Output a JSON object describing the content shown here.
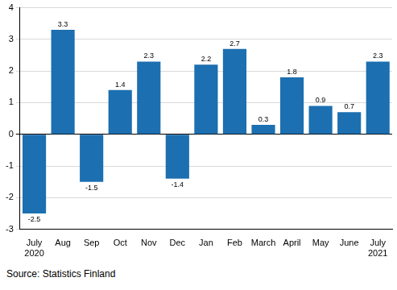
{
  "chart_data": {
    "type": "bar",
    "categories": [
      [
        "July",
        "2020"
      ],
      "Aug",
      "Sep",
      "Oct",
      "Nov",
      "Dec",
      "Jan",
      "Feb",
      "March",
      "April",
      "May",
      "June",
      [
        "July",
        "2021"
      ]
    ],
    "values": [
      -2.5,
      3.3,
      -1.5,
      1.4,
      2.3,
      -1.4,
      2.2,
      2.7,
      0.3,
      1.8,
      0.9,
      0.7,
      2.3
    ],
    "color": "#1c6fb0",
    "ylim": [
      -3,
      4
    ],
    "yticks": [
      -3,
      -2,
      -1,
      0,
      1,
      2,
      3,
      4
    ],
    "grid": true,
    "data_labels": true,
    "source": "Source: Statistics Finland"
  }
}
